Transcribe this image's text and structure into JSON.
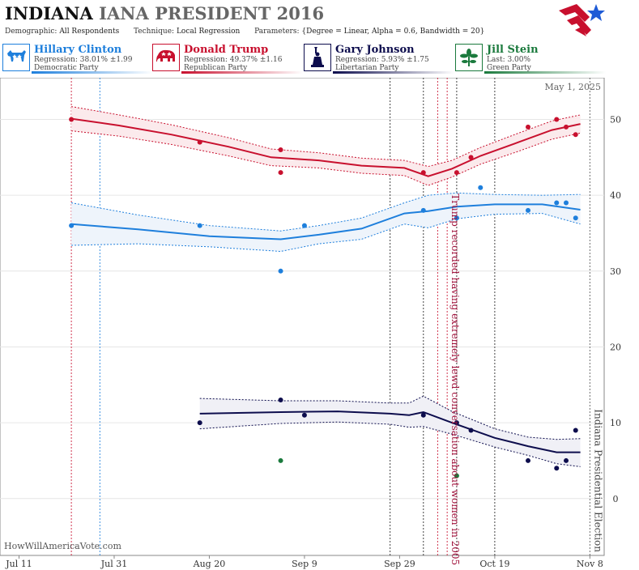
{
  "header": {
    "title_state": "INDIANA",
    "title_rest": "IANA PRESIDENT 2016",
    "demographic_label": "Demographic:",
    "demographic_value": "All Respondents",
    "technique_label": "Technique:",
    "technique_value": "Local Regression",
    "parameters_label": "Parameters:",
    "parameters_value": "{Degree = Linear, Alpha = 0.6, Bandwidth = 20}",
    "logo_icon": "howwillamericavote-logo-icon"
  },
  "candidates": [
    {
      "id": "clinton",
      "name": "Hillary Clinton",
      "stat": "Regression: 38.01% ±1.99",
      "party": "Democratic Party",
      "color": "#1e7fdc",
      "icon": "donkey-icon"
    },
    {
      "id": "trump",
      "name": "Donald Trump",
      "stat": "Regression: 49.37% ±1.16",
      "party": "Republican Party",
      "color": "#c8102e",
      "icon": "elephant-icon"
    },
    {
      "id": "johnson",
      "name": "Gary Johnson",
      "stat": "Regression: 5.93% ±1.75",
      "party": "Libertarian Party",
      "color": "#0d0d4d",
      "icon": "statue-of-liberty-icon"
    },
    {
      "id": "stein",
      "name": "Jill Stein",
      "stat": "Last: 3.00%",
      "party": "Green Party",
      "color": "#1b7a3d",
      "icon": "flower-icon"
    }
  ],
  "chart_data": {
    "type": "line",
    "date_label": "May 1, 2025",
    "watermark": "HowWillAmericaVote.com",
    "x_ticks": [
      "Jul 11",
      "Jul 31",
      "Aug 20",
      "Sep 9",
      "Sep 29",
      "Oct 19",
      "Nov 8"
    ],
    "x_range": [
      "2016-07-07",
      "2016-11-11"
    ],
    "y_ticks": [
      0,
      10,
      20,
      30,
      40,
      50
    ],
    "y_range": [
      -7.5,
      55.5
    ],
    "y_axis_side": "right",
    "annotations": [
      {
        "date": "2016-10-09",
        "text": "Trump recorded having extremely lewd conversation about women in 2005",
        "color": "#a0103a"
      },
      {
        "date": "2016-11-08",
        "text": "Indiana Presidential Election",
        "color": "#444444"
      }
    ],
    "event_lines": [
      {
        "date": "2016-07-22",
        "color": "#c8102e"
      },
      {
        "date": "2016-07-28",
        "color": "#1e7fdc"
      },
      {
        "date": "2016-09-27",
        "color": "#222222"
      },
      {
        "date": "2016-10-04",
        "color": "#222222"
      },
      {
        "date": "2016-10-07",
        "color": "#c8102e"
      },
      {
        "date": "2016-10-09",
        "color": "#c8102e"
      },
      {
        "date": "2016-10-11",
        "color": "#222222"
      },
      {
        "date": "2016-10-19",
        "color": "#222222"
      },
      {
        "date": "2016-11-08",
        "color": "#555555"
      }
    ],
    "series": [
      {
        "name": "Donald Trump",
        "color": "#c8102e",
        "band_fill": "#fbeaec",
        "fit": [
          [
            "2016-07-22",
            50.1
          ],
          [
            "2016-08-01",
            49.2
          ],
          [
            "2016-08-12",
            48.0
          ],
          [
            "2016-08-24",
            46.4
          ],
          [
            "2016-09-02",
            45.0
          ],
          [
            "2016-09-12",
            44.6
          ],
          [
            "2016-09-21",
            43.9
          ],
          [
            "2016-09-30",
            43.6
          ],
          [
            "2016-10-05",
            42.5
          ],
          [
            "2016-10-10",
            43.5
          ],
          [
            "2016-10-16",
            45.2
          ],
          [
            "2016-10-24",
            47.0
          ],
          [
            "2016-10-31",
            48.6
          ],
          [
            "2016-11-06",
            49.4
          ]
        ],
        "upper": [
          [
            "2016-07-22",
            51.7
          ],
          [
            "2016-08-01",
            50.6
          ],
          [
            "2016-08-12",
            49.3
          ],
          [
            "2016-08-24",
            47.6
          ],
          [
            "2016-09-02",
            46.1
          ],
          [
            "2016-09-12",
            45.6
          ],
          [
            "2016-09-21",
            44.9
          ],
          [
            "2016-09-30",
            44.6
          ],
          [
            "2016-10-05",
            43.8
          ],
          [
            "2016-10-10",
            44.6
          ],
          [
            "2016-10-16",
            46.3
          ],
          [
            "2016-10-24",
            48.2
          ],
          [
            "2016-10-31",
            49.8
          ],
          [
            "2016-11-06",
            50.6
          ]
        ],
        "lower": [
          [
            "2016-07-22",
            48.5
          ],
          [
            "2016-08-01",
            47.8
          ],
          [
            "2016-08-12",
            46.7
          ],
          [
            "2016-08-24",
            45.2
          ],
          [
            "2016-09-02",
            43.9
          ],
          [
            "2016-09-12",
            43.6
          ],
          [
            "2016-09-21",
            42.9
          ],
          [
            "2016-09-30",
            42.6
          ],
          [
            "2016-10-05",
            41.3
          ],
          [
            "2016-10-10",
            42.4
          ],
          [
            "2016-10-16",
            44.1
          ],
          [
            "2016-10-24",
            45.8
          ],
          [
            "2016-10-31",
            47.4
          ],
          [
            "2016-11-06",
            48.2
          ]
        ],
        "points": [
          [
            "2016-07-22",
            50
          ],
          [
            "2016-08-18",
            47
          ],
          [
            "2016-09-04",
            46
          ],
          [
            "2016-09-04",
            43
          ],
          [
            "2016-10-04",
            43
          ],
          [
            "2016-10-11",
            43
          ],
          [
            "2016-10-14",
            45
          ],
          [
            "2016-10-26",
            49
          ],
          [
            "2016-11-01",
            50
          ],
          [
            "2016-11-03",
            49
          ],
          [
            "2016-11-05",
            48
          ]
        ]
      },
      {
        "name": "Hillary Clinton",
        "color": "#1e7fdc",
        "band_fill": "#eef4fb",
        "fit": [
          [
            "2016-07-22",
            36.2
          ],
          [
            "2016-08-05",
            35.5
          ],
          [
            "2016-08-20",
            34.6
          ],
          [
            "2016-09-04",
            34.2
          ],
          [
            "2016-09-12",
            34.8
          ],
          [
            "2016-09-21",
            35.6
          ],
          [
            "2016-09-30",
            37.6
          ],
          [
            "2016-10-05",
            37.9
          ],
          [
            "2016-10-11",
            38.5
          ],
          [
            "2016-10-19",
            38.8
          ],
          [
            "2016-10-29",
            38.8
          ],
          [
            "2016-11-06",
            38.1
          ]
        ],
        "upper": [
          [
            "2016-07-22",
            39.0
          ],
          [
            "2016-08-05",
            37.4
          ],
          [
            "2016-08-20",
            36.0
          ],
          [
            "2016-09-04",
            35.3
          ],
          [
            "2016-09-12",
            36.0
          ],
          [
            "2016-09-21",
            37.0
          ],
          [
            "2016-09-30",
            39.0
          ],
          [
            "2016-10-05",
            40.0
          ],
          [
            "2016-10-11",
            40.3
          ],
          [
            "2016-10-19",
            40.1
          ],
          [
            "2016-10-29",
            40.0
          ],
          [
            "2016-11-06",
            40.1
          ]
        ],
        "lower": [
          [
            "2016-07-22",
            33.4
          ],
          [
            "2016-08-05",
            33.6
          ],
          [
            "2016-08-20",
            33.2
          ],
          [
            "2016-09-04",
            32.6
          ],
          [
            "2016-09-12",
            33.6
          ],
          [
            "2016-09-21",
            34.2
          ],
          [
            "2016-09-30",
            36.2
          ],
          [
            "2016-10-05",
            35.7
          ],
          [
            "2016-10-11",
            36.9
          ],
          [
            "2016-10-19",
            37.5
          ],
          [
            "2016-10-29",
            37.6
          ],
          [
            "2016-11-06",
            36.2
          ]
        ],
        "points": [
          [
            "2016-07-22",
            36
          ],
          [
            "2016-08-18",
            36
          ],
          [
            "2016-09-04",
            30
          ],
          [
            "2016-09-09",
            36
          ],
          [
            "2016-10-04",
            38
          ],
          [
            "2016-10-11",
            37
          ],
          [
            "2016-10-16",
            41
          ],
          [
            "2016-10-26",
            38
          ],
          [
            "2016-11-01",
            39
          ],
          [
            "2016-11-03",
            39
          ],
          [
            "2016-11-05",
            37
          ]
        ]
      },
      {
        "name": "Gary Johnson",
        "color": "#0d0d4d",
        "band_fill": "#f0f0f6",
        "fit": [
          [
            "2016-08-18",
            11.2
          ],
          [
            "2016-09-04",
            11.4
          ],
          [
            "2016-09-16",
            11.5
          ],
          [
            "2016-09-27",
            11.2
          ],
          [
            "2016-10-01",
            11.0
          ],
          [
            "2016-10-04",
            11.4
          ],
          [
            "2016-10-10",
            10.0
          ],
          [
            "2016-10-19",
            8.0
          ],
          [
            "2016-10-26",
            6.9
          ],
          [
            "2016-11-01",
            6.1
          ],
          [
            "2016-11-06",
            6.1
          ]
        ],
        "upper": [
          [
            "2016-08-18",
            13.2
          ],
          [
            "2016-09-04",
            12.9
          ],
          [
            "2016-09-16",
            12.9
          ],
          [
            "2016-09-27",
            12.6
          ],
          [
            "2016-10-01",
            12.6
          ],
          [
            "2016-10-04",
            13.5
          ],
          [
            "2016-10-10",
            11.5
          ],
          [
            "2016-10-19",
            9.2
          ],
          [
            "2016-10-26",
            8.1
          ],
          [
            "2016-11-01",
            7.8
          ],
          [
            "2016-11-06",
            7.9
          ]
        ],
        "lower": [
          [
            "2016-08-18",
            9.2
          ],
          [
            "2016-09-04",
            9.9
          ],
          [
            "2016-09-16",
            10.1
          ],
          [
            "2016-09-27",
            9.8
          ],
          [
            "2016-10-01",
            9.4
          ],
          [
            "2016-10-04",
            9.5
          ],
          [
            "2016-10-10",
            8.5
          ],
          [
            "2016-10-19",
            6.8
          ],
          [
            "2016-10-26",
            5.7
          ],
          [
            "2016-11-01",
            4.6
          ],
          [
            "2016-11-06",
            4.2
          ]
        ],
        "points": [
          [
            "2016-08-18",
            10
          ],
          [
            "2016-09-04",
            13
          ],
          [
            "2016-09-09",
            11
          ],
          [
            "2016-10-04",
            11
          ],
          [
            "2016-10-11",
            10
          ],
          [
            "2016-10-14",
            9
          ],
          [
            "2016-10-26",
            5
          ],
          [
            "2016-11-01",
            4
          ],
          [
            "2016-11-03",
            5
          ],
          [
            "2016-11-05",
            9
          ]
        ]
      },
      {
        "name": "Jill Stein",
        "color": "#1b7a3d",
        "points": [
          [
            "2016-09-04",
            5
          ],
          [
            "2016-10-11",
            3
          ]
        ]
      }
    ]
  }
}
